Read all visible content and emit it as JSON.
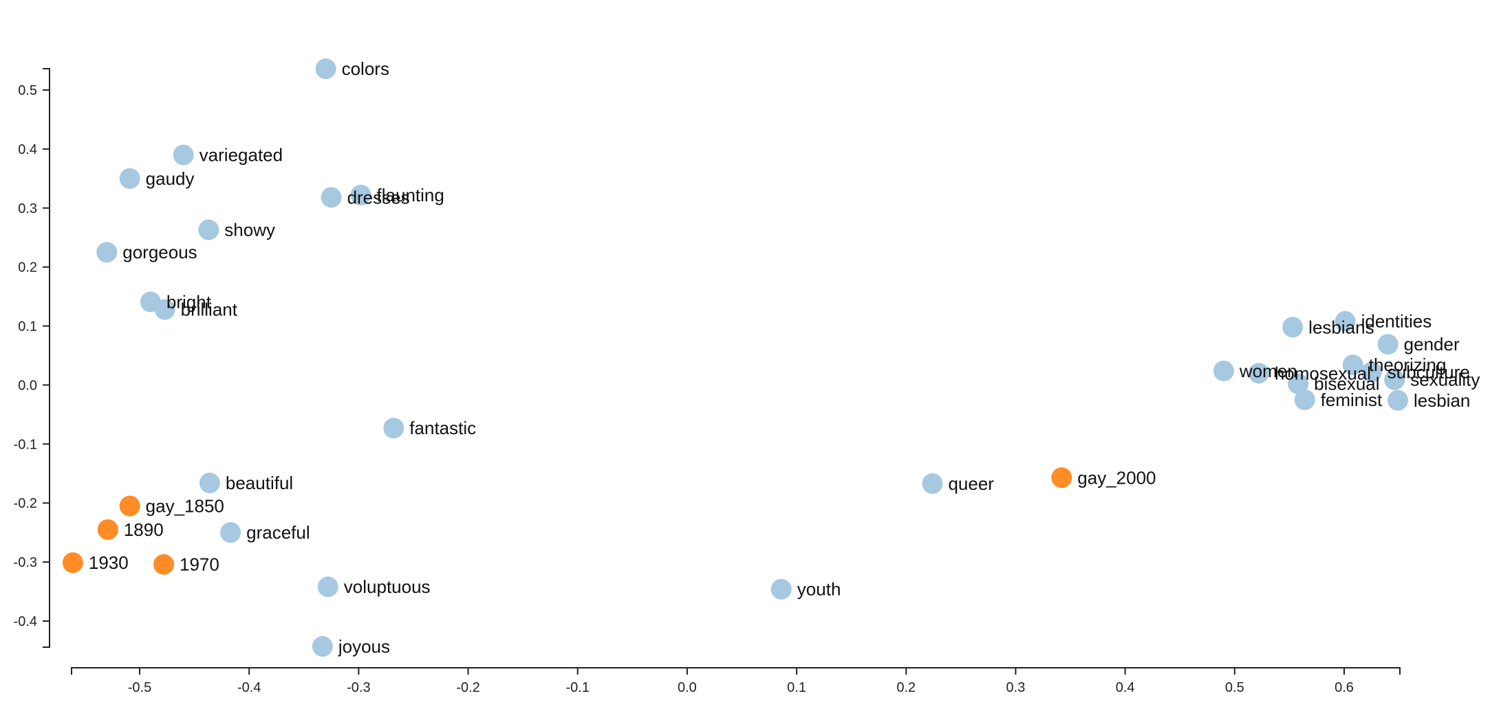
{
  "chart_data": {
    "type": "scatter",
    "title": "",
    "xlabel": "",
    "ylabel": "",
    "xlim": [
      -0.56,
      0.65
    ],
    "ylim": [
      -0.44,
      0.53
    ],
    "x_ticks": [
      "-0.5",
      "-0.4",
      "-0.3",
      "-0.2",
      "-0.1",
      "0.0",
      "0.1",
      "0.2",
      "0.3",
      "0.4",
      "0.5",
      "0.6"
    ],
    "y_ticks": [
      "0.5",
      "0.4",
      "0.3",
      "0.2",
      "0.1",
      "0.0",
      "-0.1",
      "-0.2",
      "-0.3",
      "-0.4"
    ],
    "grid": false,
    "colors": {
      "word": "#a6c8e0",
      "highlight": "#ff8c26"
    },
    "points": [
      {
        "label": "colors",
        "x": -0.33,
        "y": 0.536,
        "group": "word"
      },
      {
        "label": "variegated",
        "x": -0.46,
        "y": 0.39,
        "group": "word"
      },
      {
        "label": "gaudy",
        "x": -0.509,
        "y": 0.35,
        "group": "word"
      },
      {
        "label": "flaunting",
        "x": -0.298,
        "y": 0.322,
        "group": "word"
      },
      {
        "label": "dresses",
        "x": -0.325,
        "y": 0.318,
        "group": "word"
      },
      {
        "label": "showy",
        "x": -0.437,
        "y": 0.263,
        "group": "word"
      },
      {
        "label": "gorgeous",
        "x": -0.53,
        "y": 0.225,
        "group": "word"
      },
      {
        "label": "bright",
        "x": -0.49,
        "y": 0.141,
        "group": "word"
      },
      {
        "label": "brilliant",
        "x": -0.477,
        "y": 0.128,
        "group": "word"
      },
      {
        "label": "fantastic",
        "x": -0.268,
        "y": -0.073,
        "group": "word"
      },
      {
        "label": "beautiful",
        "x": -0.436,
        "y": -0.166,
        "group": "word"
      },
      {
        "label": "graceful",
        "x": -0.417,
        "y": -0.25,
        "group": "word"
      },
      {
        "label": "voluptuous",
        "x": -0.328,
        "y": -0.342,
        "group": "word"
      },
      {
        "label": "joyous",
        "x": -0.333,
        "y": -0.443,
        "group": "word"
      },
      {
        "label": "youth",
        "x": 0.086,
        "y": -0.346,
        "group": "word"
      },
      {
        "label": "queer",
        "x": 0.224,
        "y": -0.167,
        "group": "word"
      },
      {
        "label": "identities",
        "x": 0.601,
        "y": 0.108,
        "group": "word"
      },
      {
        "label": "lesbians",
        "x": 0.553,
        "y": 0.098,
        "group": "word"
      },
      {
        "label": "gender",
        "x": 0.64,
        "y": 0.069,
        "group": "word"
      },
      {
        "label": "theorizing",
        "x": 0.608,
        "y": 0.034,
        "group": "word"
      },
      {
        "label": "subculture",
        "x": 0.625,
        "y": 0.022,
        "group": "word"
      },
      {
        "label": "women",
        "x": 0.49,
        "y": 0.024,
        "group": "word"
      },
      {
        "label": "homosexual",
        "x": 0.522,
        "y": 0.02,
        "group": "word"
      },
      {
        "label": "sexuality",
        "x": 0.646,
        "y": 0.009,
        "group": "word"
      },
      {
        "label": "bisexual",
        "x": 0.558,
        "y": 0.002,
        "group": "word"
      },
      {
        "label": "feminist",
        "x": 0.564,
        "y": -0.025,
        "group": "word"
      },
      {
        "label": "lesbian",
        "x": 0.649,
        "y": -0.026,
        "group": "word"
      },
      {
        "label": "gay_1850",
        "x": -0.509,
        "y": -0.205,
        "group": "highlight"
      },
      {
        "label": "1890",
        "x": -0.529,
        "y": -0.245,
        "group": "highlight"
      },
      {
        "label": "1930",
        "x": -0.561,
        "y": -0.301,
        "group": "highlight"
      },
      {
        "label": "1970",
        "x": -0.478,
        "y": -0.304,
        "group": "highlight"
      },
      {
        "label": "gay_2000",
        "x": 0.342,
        "y": -0.157,
        "group": "highlight"
      }
    ]
  }
}
